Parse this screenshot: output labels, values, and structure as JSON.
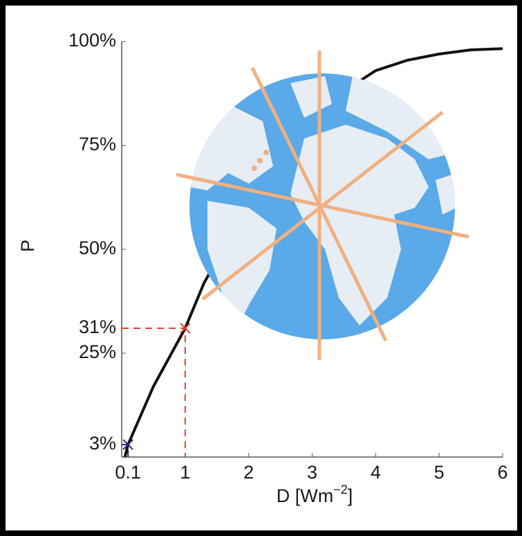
{
  "chart_data": {
    "type": "line",
    "ylabel": "P",
    "xlabel": {
      "text": "D [Wm",
      "sup": "−2",
      "end": "]"
    },
    "x": [
      0.05,
      0.1,
      0.3,
      0.5,
      0.75,
      1,
      1.3,
      1.6,
      2,
      2.5,
      3,
      3.5,
      3.7,
      4,
      4.5,
      5,
      5.5,
      6
    ],
    "series": [
      {
        "name": "P",
        "color": "#111111",
        "values": [
          0,
          3,
          10,
          17,
          24,
          31,
          42,
          50,
          57,
          68,
          78,
          87,
          90,
          93,
          95.5,
          97,
          98,
          98.3
        ]
      }
    ],
    "xlim": [
      0,
      6
    ],
    "ylim": [
      0,
      100
    ],
    "xticks": [
      {
        "value": 0.1,
        "label": "0.1",
        "color": "#2e2a8a"
      },
      {
        "value": 1,
        "label": "1",
        "color": "#e8412c"
      },
      2,
      3,
      4,
      5,
      6
    ],
    "yticks": [
      {
        "value": 3,
        "label": "3%",
        "color": "#2e2a8a"
      },
      {
        "value": 25,
        "label": "25%"
      },
      {
        "value": 31,
        "label": "31%",
        "color": "#e8412c"
      },
      {
        "value": 50,
        "label": "50%"
      },
      {
        "value": 75,
        "label": "75%"
      },
      {
        "value": 100,
        "label": "100%"
      }
    ],
    "highlights": [
      {
        "x": 0.1,
        "y": 3,
        "color": "#2e2a8a"
      },
      {
        "x": 1,
        "y": 31,
        "color": "#e8412c"
      }
    ]
  }
}
